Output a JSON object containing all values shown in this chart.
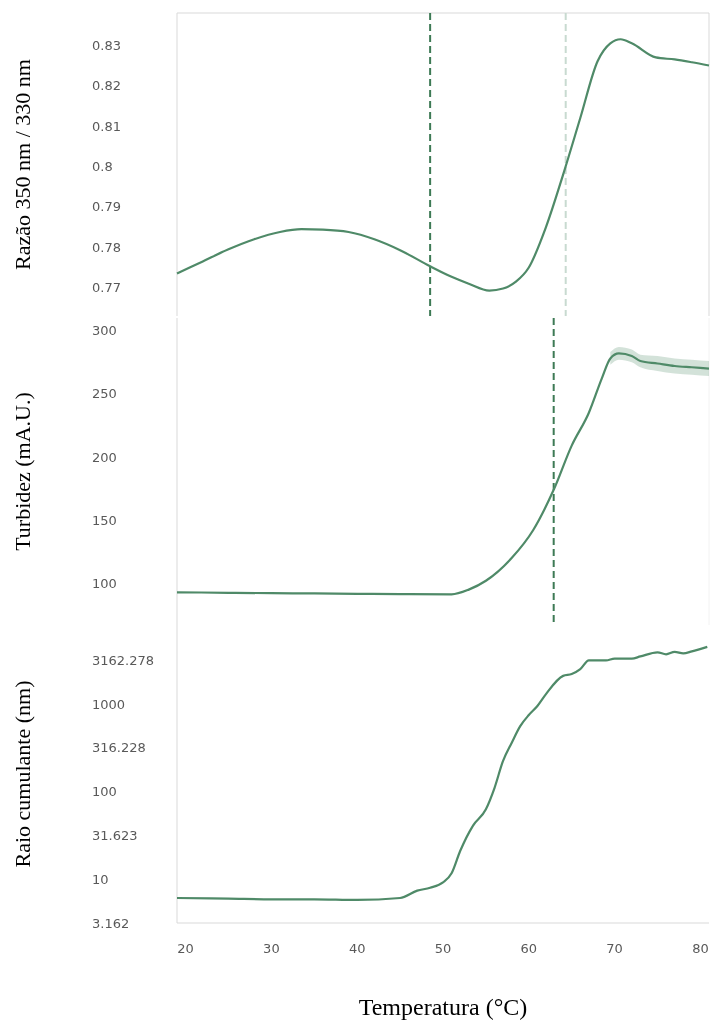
{
  "chart_data": [
    {
      "type": "line",
      "ylabel": "Razão 350 nm / 330 nm",
      "x": [
        19,
        22,
        25,
        28,
        31,
        33.5,
        36,
        39,
        42,
        45,
        48.5,
        51,
        53,
        55.4,
        57,
        58.5,
        60,
        62,
        64,
        66,
        68,
        69.5,
        70.7,
        72,
        74.8,
        77,
        79,
        81
      ],
      "series": [
        {
          "color": "#4f8a68",
          "values": [
            0.7735,
            0.7765,
            0.7795,
            0.782,
            0.7838,
            0.7845,
            0.7844,
            0.7838,
            0.782,
            0.7793,
            0.7753,
            0.7727,
            0.771,
            0.7693,
            0.7698,
            0.7715,
            0.775,
            0.785,
            0.798,
            0.812,
            0.826,
            0.8305,
            0.8315,
            0.8305,
            0.827,
            0.8265,
            0.8258,
            0.825
          ]
        }
      ],
      "xlim": [
        19,
        81
      ],
      "ylim": [
        0.763,
        0.838
      ],
      "yticks": [
        0.77,
        0.78,
        0.79,
        0.8,
        0.81,
        0.82,
        0.83
      ],
      "tick_labels": "y",
      "grid": false,
      "ref_lines": [
        {
          "axis": "x",
          "value": 48.5,
          "color": "#3d7a55",
          "line_style": "dashed"
        },
        {
          "axis": "x",
          "value": 64.3,
          "color": "#c8dad0",
          "line_style": "dashed"
        }
      ]
    },
    {
      "type": "line",
      "ylabel": "Turbidez (mA.U.)",
      "x": [
        19,
        25,
        30,
        35,
        40,
        45,
        51,
        53,
        55,
        58,
        60.5,
        62.9,
        65,
        67,
        68.5,
        69.5,
        70.5,
        72,
        73,
        75,
        77,
        79,
        81
      ],
      "series": [
        {
          "color": "#4f8a68",
          "values": [
            92.9,
            92.5,
            92.2,
            92,
            91.7,
            91.4,
            91.3,
            95,
            102,
            120,
            142,
            174,
            209,
            235,
            262,
            278,
            282,
            280,
            276,
            274,
            272,
            271,
            270
          ],
          "lower": [
            null,
            null,
            null,
            null,
            null,
            null,
            null,
            null,
            null,
            null,
            null,
            null,
            null,
            null,
            null,
            273,
            277,
            275,
            271,
            268,
            266,
            265,
            264
          ],
          "upper": [
            null,
            null,
            null,
            null,
            null,
            null,
            null,
            null,
            null,
            null,
            null,
            null,
            null,
            null,
            null,
            283,
            287,
            285,
            281,
            280,
            278,
            277,
            276
          ]
        }
      ],
      "xlim": [
        19,
        81
      ],
      "ylim": [
        67,
        310
      ],
      "yticks": [
        100,
        150,
        200,
        250,
        300
      ],
      "tick_labels": "y",
      "grid": false,
      "ref_lines": [
        {
          "axis": "x",
          "value": 62.9,
          "color": "#3d7a55",
          "line_style": "dashed"
        }
      ]
    },
    {
      "type": "line",
      "ylabel": "Raio cumulante (nm)",
      "xlabel": "Temperatura (°C)",
      "log": "y",
      "x": [
        19,
        25,
        30,
        35,
        40,
        45,
        47,
        48.5,
        50,
        51,
        52,
        53.5,
        55,
        56,
        57,
        58,
        59,
        60,
        61,
        62,
        64,
        65,
        66,
        67,
        69,
        70,
        72,
        73,
        75,
        76,
        77,
        78,
        79,
        80.8
      ],
      "series": [
        {
          "color": "#4f8a68",
          "values": [
            6.1,
            6,
            5.9,
            5.9,
            5.8,
            6.1,
            7.4,
            8,
            9.2,
            11.7,
            21,
            41,
            63,
            110,
            225,
            360,
            560,
            750,
            950,
            1300,
            2100,
            2200,
            2500,
            3150,
            3150,
            3300,
            3300,
            3500,
            3900,
            3700,
            3950,
            3800,
            4000,
            4500
          ]
        }
      ],
      "xlim": [
        19,
        81
      ],
      "ylim": [
        3.162,
        8000
      ],
      "xticks": [
        20,
        30,
        40,
        50,
        60,
        70,
        80
      ],
      "yticks": [
        3.162,
        10,
        31.623,
        100,
        316.228,
        1000,
        3162.278
      ],
      "grid": false
    }
  ]
}
